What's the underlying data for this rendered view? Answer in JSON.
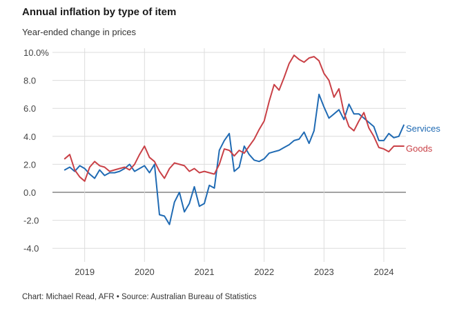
{
  "header": {
    "title": "Annual inflation by type of item",
    "subtitle": "Year-ended change in prices"
  },
  "footer": {
    "source": "Chart: Michael Read, AFR • Source: Australian Bureau of Statistics"
  },
  "chart_data": {
    "type": "line",
    "title": "Annual inflation by type of item",
    "subtitle": "Year-ended change in prices",
    "ylim": [
      -5,
      10
    ],
    "y_ticks": [
      "10.0%",
      "8.0",
      "6.0",
      "4.0",
      "2.0",
      "0.0",
      "-2.0",
      "-4.0"
    ],
    "y_tick_values": [
      10,
      8,
      6,
      4,
      2,
      0,
      -2,
      -4
    ],
    "x_tick_labels": [
      "2019",
      "2020",
      "2021",
      "2022",
      "2023",
      "2024"
    ],
    "x_tick_values": [
      2019,
      2020,
      2021,
      2022,
      2023,
      2024
    ],
    "xlim": [
      2018.6,
      2024.45
    ],
    "grid": true,
    "legend": "inline-right",
    "series": [
      {
        "name": "Services",
        "color": "#1f6ab3",
        "x": [
          2018.667,
          2018.75,
          2018.833,
          2018.917,
          2019.0,
          2019.083,
          2019.167,
          2019.25,
          2019.333,
          2019.417,
          2019.5,
          2019.583,
          2019.667,
          2019.75,
          2019.833,
          2019.917,
          2020.0,
          2020.083,
          2020.167,
          2020.25,
          2020.333,
          2020.417,
          2020.5,
          2020.583,
          2020.667,
          2020.75,
          2020.833,
          2020.917,
          2021.0,
          2021.083,
          2021.167,
          2021.25,
          2021.333,
          2021.417,
          2021.5,
          2021.583,
          2021.667,
          2021.75,
          2021.833,
          2021.917,
          2022.0,
          2022.083,
          2022.167,
          2022.25,
          2022.333,
          2022.417,
          2022.5,
          2022.583,
          2022.667,
          2022.75,
          2022.833,
          2022.917,
          2023.0,
          2023.083,
          2023.167,
          2023.25,
          2023.333,
          2023.417,
          2023.5,
          2023.583,
          2023.667,
          2023.75,
          2023.833,
          2023.917,
          2024.0,
          2024.083,
          2024.167,
          2024.25,
          2024.333
        ],
        "values": [
          1.6,
          1.8,
          1.5,
          1.9,
          1.7,
          1.3,
          1.0,
          1.6,
          1.2,
          1.4,
          1.4,
          1.5,
          1.7,
          2.0,
          1.5,
          1.7,
          1.9,
          1.4,
          2.0,
          -1.6,
          -1.7,
          -2.3,
          -0.7,
          0.0,
          -1.4,
          -0.8,
          0.4,
          -1.0,
          -0.8,
          0.5,
          0.3,
          3.0,
          3.7,
          4.2,
          1.5,
          1.8,
          3.3,
          2.7,
          2.3,
          2.2,
          2.4,
          2.8,
          2.9,
          3.0,
          3.2,
          3.4,
          3.7,
          3.8,
          4.3,
          3.5,
          4.4,
          7.0,
          6.1,
          5.3,
          5.6,
          5.9,
          5.2,
          6.3,
          5.6,
          5.6,
          5.3,
          5.0,
          4.7,
          3.7,
          3.7,
          4.2,
          3.9,
          4.0,
          4.8
        ]
      },
      {
        "name": "Goods",
        "color": "#c94046",
        "x": [
          2018.667,
          2018.75,
          2018.833,
          2018.917,
          2019.0,
          2019.083,
          2019.167,
          2019.25,
          2019.333,
          2019.417,
          2019.5,
          2019.583,
          2019.667,
          2019.75,
          2019.833,
          2019.917,
          2020.0,
          2020.083,
          2020.167,
          2020.25,
          2020.333,
          2020.417,
          2020.5,
          2020.583,
          2020.667,
          2020.75,
          2020.833,
          2020.917,
          2021.0,
          2021.083,
          2021.167,
          2021.25,
          2021.333,
          2021.417,
          2021.5,
          2021.583,
          2021.667,
          2021.75,
          2021.833,
          2021.917,
          2022.0,
          2022.083,
          2022.167,
          2022.25,
          2022.333,
          2022.417,
          2022.5,
          2022.583,
          2022.667,
          2022.75,
          2022.833,
          2022.917,
          2023.0,
          2023.083,
          2023.167,
          2023.25,
          2023.333,
          2023.417,
          2023.5,
          2023.583,
          2023.667,
          2023.75,
          2023.833,
          2023.917,
          2024.0,
          2024.083,
          2024.167,
          2024.25,
          2024.333
        ],
        "values": [
          2.4,
          2.7,
          1.6,
          1.1,
          0.8,
          1.8,
          2.2,
          1.9,
          1.8,
          1.5,
          1.6,
          1.7,
          1.8,
          1.6,
          2.0,
          2.7,
          3.3,
          2.5,
          2.2,
          1.5,
          1.0,
          1.7,
          2.1,
          2.0,
          1.9,
          1.5,
          1.7,
          1.4,
          1.5,
          1.4,
          1.3,
          2.0,
          3.1,
          3.0,
          2.6,
          3.0,
          2.8,
          3.3,
          3.8,
          4.5,
          5.1,
          6.5,
          7.7,
          7.3,
          8.2,
          9.2,
          9.8,
          9.5,
          9.3,
          9.6,
          9.7,
          9.4,
          8.5,
          8.0,
          6.8,
          7.4,
          5.7,
          4.7,
          4.4,
          5.1,
          5.7,
          4.6,
          4.0,
          3.2,
          3.1,
          2.9,
          3.3,
          3.3,
          3.3
        ]
      }
    ]
  }
}
